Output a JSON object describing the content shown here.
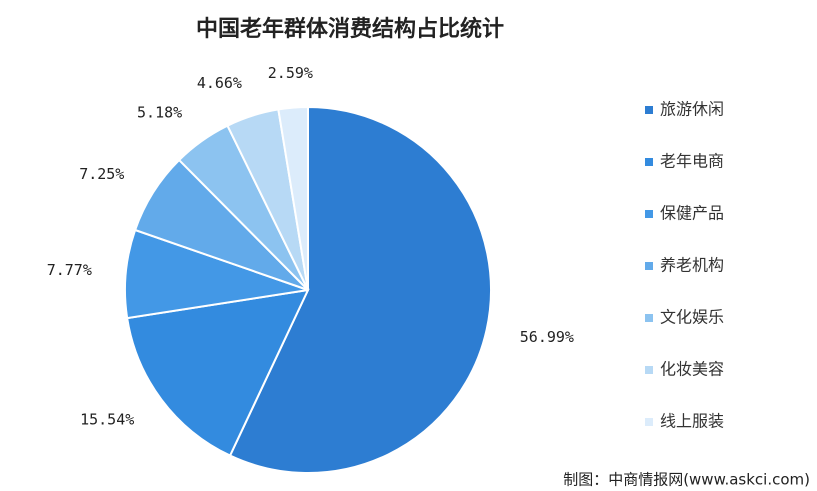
{
  "chart_data": {
    "type": "pie",
    "title": "中国老年群体消费结构占比统计",
    "categories": [
      "旅游休闲",
      "老年电商",
      "保健产品",
      "养老机构",
      "文化娱乐",
      "化妆美容",
      "线上服装"
    ],
    "values": [
      56.99,
      15.54,
      7.77,
      7.25,
      5.18,
      4.66,
      2.59
    ],
    "value_labels": [
      "56.99%",
      "15.54%",
      "7.77%",
      "7.25%",
      "5.18%",
      "4.66%",
      "2.59%"
    ],
    "colors": [
      "#2d7dd2",
      "#338bdf",
      "#4398e6",
      "#62aaea",
      "#8cc3f0",
      "#b7d9f5",
      "#dcecfb"
    ],
    "legend": "right",
    "source": "制图：中商情报网(www.askci.com)"
  }
}
